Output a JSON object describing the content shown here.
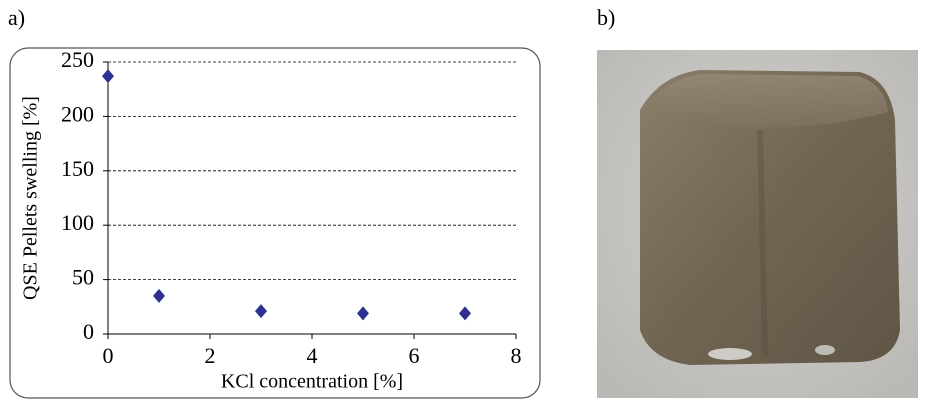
{
  "panel_labels": [
    "a)",
    "b)"
  ],
  "chart_data": {
    "type": "scatter",
    "x_label": "KCl concentration [%]",
    "y_label": "QSE Pellets swelling [%]",
    "x": [
      0,
      1,
      3,
      5,
      7
    ],
    "values": [
      237,
      35,
      21,
      19,
      19
    ],
    "color": "#2e3192",
    "xlim": [
      0,
      8
    ],
    "xticks": [
      0,
      2,
      4,
      6,
      8
    ],
    "ylim": [
      0,
      250
    ],
    "yticks": [
      0,
      50,
      100,
      150,
      200,
      250
    ],
    "grid": true
  }
}
